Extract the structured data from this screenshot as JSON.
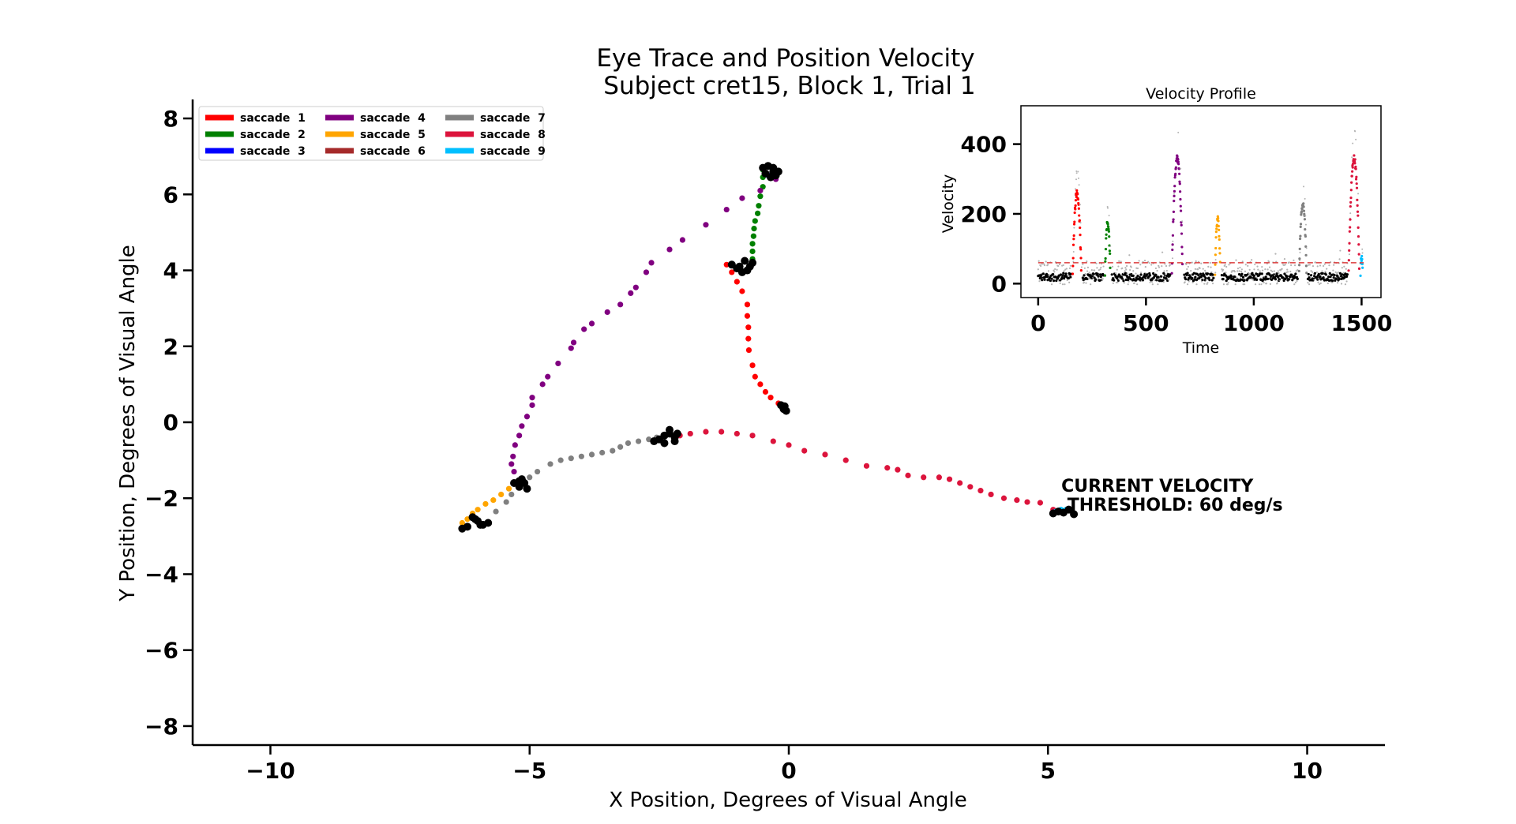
{
  "chart_data": [
    {
      "type": "scatter",
      "title": "Eye Trace and Position Velocity\n Subject cret15, Block 1, Trial 1",
      "xlabel": "X Position, Degrees of Visual Angle",
      "ylabel": "Y Position, Degrees of Visual Angle",
      "xlim": [
        -11.5,
        11.5
      ],
      "ylim": [
        -8.5,
        8.5
      ],
      "xticks": [
        -10,
        -5,
        0,
        5,
        10
      ],
      "yticks": [
        -8,
        -6,
        -4,
        -2,
        0,
        2,
        4,
        6,
        8
      ],
      "xtick_labels": [
        "−10",
        "−5",
        "0",
        "5",
        "10"
      ],
      "ytick_labels": [
        "−8",
        "−6",
        "−4",
        "−2",
        "0",
        "2",
        "4",
        "6",
        "8"
      ],
      "grid": false,
      "legend_position": "top-left",
      "annotation": "CURRENT VELOCITY\n THRESHOLD: 60 deg/s",
      "annotation_at": [
        5.5,
        -2.2
      ],
      "fixation_color": "#000000",
      "fixations": [
        [
          -0.5,
          6.7
        ],
        [
          -0.4,
          6.75
        ],
        [
          -0.3,
          6.6
        ],
        [
          -0.25,
          6.5
        ],
        [
          -0.35,
          6.45
        ],
        [
          -0.45,
          6.55
        ],
        [
          -0.2,
          6.6
        ],
        [
          -0.3,
          6.7
        ],
        [
          -1.1,
          4.15
        ],
        [
          -1.0,
          4.05
        ],
        [
          -0.9,
          3.95
        ],
        [
          -0.8,
          4.0
        ],
        [
          -0.75,
          4.1
        ],
        [
          -0.7,
          4.2
        ],
        [
          -0.85,
          4.25
        ],
        [
          -0.95,
          4.1
        ],
        [
          -0.15,
          0.45
        ],
        [
          -0.1,
          0.35
        ],
        [
          -0.05,
          0.3
        ],
        [
          -0.1,
          0.4
        ],
        [
          -0.08,
          0.42
        ],
        [
          -2.6,
          -0.5
        ],
        [
          -2.5,
          -0.45
        ],
        [
          -2.4,
          -0.55
        ],
        [
          -2.3,
          -0.3
        ],
        [
          -2.2,
          -0.4
        ],
        [
          -2.3,
          -0.2
        ],
        [
          -2.4,
          -0.35
        ],
        [
          -2.2,
          -0.5
        ],
        [
          -2.15,
          -0.3
        ],
        [
          -5.3,
          -1.6
        ],
        [
          -5.2,
          -1.7
        ],
        [
          -5.1,
          -1.6
        ],
        [
          -5.15,
          -1.5
        ],
        [
          -5.05,
          -1.75
        ],
        [
          -5.2,
          -1.55
        ],
        [
          -6.1,
          -2.5
        ],
        [
          -6.0,
          -2.6
        ],
        [
          -5.9,
          -2.7
        ],
        [
          -5.8,
          -2.65
        ],
        [
          -6.05,
          -2.55
        ],
        [
          -5.95,
          -2.7
        ],
        [
          -6.3,
          -2.8
        ],
        [
          -6.2,
          -2.75
        ],
        [
          5.1,
          -2.4
        ],
        [
          5.2,
          -2.35
        ],
        [
          5.3,
          -2.38
        ],
        [
          5.4,
          -2.3
        ],
        [
          5.5,
          -2.42
        ]
      ],
      "series": [
        {
          "name": "saccade  1",
          "color": "#ff0000",
          "points": [
            [
              -1.2,
              4.15
            ],
            [
              -1.1,
              3.95
            ],
            [
              -1.0,
              3.7
            ],
            [
              -0.9,
              3.45
            ],
            [
              -0.8,
              3.1
            ],
            [
              -0.8,
              2.8
            ],
            [
              -0.78,
              2.5
            ],
            [
              -0.78,
              2.2
            ],
            [
              -0.77,
              1.9
            ],
            [
              -0.7,
              1.5
            ],
            [
              -0.65,
              1.2
            ],
            [
              -0.55,
              1.0
            ],
            [
              -0.45,
              0.8
            ],
            [
              -0.35,
              0.65
            ],
            [
              -0.2,
              0.5
            ]
          ]
        },
        {
          "name": "saccade  2",
          "color": "#008000",
          "points": [
            [
              -0.7,
              4.3
            ],
            [
              -0.7,
              4.5
            ],
            [
              -0.7,
              4.7
            ],
            [
              -0.68,
              4.9
            ],
            [
              -0.67,
              5.1
            ],
            [
              -0.65,
              5.3
            ],
            [
              -0.6,
              5.5
            ],
            [
              -0.58,
              5.7
            ],
            [
              -0.55,
              5.95
            ],
            [
              -0.5,
              6.2
            ],
            [
              -0.5,
              6.45
            ],
            [
              -0.5,
              6.65
            ]
          ]
        },
        {
          "name": "saccade  3",
          "color": "#0000ff",
          "points": [
            [
              -0.45,
              6.55
            ],
            [
              -0.4,
              6.5
            ],
            [
              -0.35,
              6.45
            ]
          ]
        },
        {
          "name": "saccade  4",
          "color": "#800080",
          "points": [
            [
              -0.25,
              6.4
            ],
            [
              -0.55,
              6.1
            ],
            [
              -0.9,
              5.9
            ],
            [
              -1.2,
              5.6
            ],
            [
              -1.6,
              5.2
            ],
            [
              -2.05,
              4.8
            ],
            [
              -2.3,
              4.55
            ],
            [
              -2.65,
              4.2
            ],
            [
              -2.75,
              3.95
            ],
            [
              -2.95,
              3.55
            ],
            [
              -3.05,
              3.4
            ],
            [
              -3.25,
              3.1
            ],
            [
              -3.5,
              2.9
            ],
            [
              -3.8,
              2.6
            ],
            [
              -3.95,
              2.45
            ],
            [
              -4.15,
              2.1
            ],
            [
              -4.2,
              1.95
            ],
            [
              -4.45,
              1.55
            ],
            [
              -4.65,
              1.2
            ],
            [
              -4.75,
              1.0
            ],
            [
              -4.95,
              0.65
            ],
            [
              -4.95,
              0.45
            ],
            [
              -5.05,
              0.15
            ],
            [
              -5.15,
              -0.1
            ],
            [
              -5.2,
              -0.35
            ],
            [
              -5.28,
              -0.6
            ],
            [
              -5.32,
              -0.9
            ],
            [
              -5.35,
              -1.1
            ],
            [
              -5.3,
              -1.3
            ]
          ]
        },
        {
          "name": "saccade  5",
          "color": "#ffa500",
          "points": [
            [
              -5.4,
              -1.75
            ],
            [
              -5.55,
              -1.9
            ],
            [
              -5.7,
              -2.05
            ],
            [
              -5.85,
              -2.15
            ],
            [
              -6.0,
              -2.3
            ],
            [
              -6.1,
              -2.4
            ],
            [
              -6.2,
              -2.55
            ],
            [
              -6.3,
              -2.65
            ]
          ]
        },
        {
          "name": "saccade  6",
          "color": "#a52a2a",
          "points": []
        },
        {
          "name": "saccade  7",
          "color": "#808080",
          "points": [
            [
              -5.65,
              -2.35
            ],
            [
              -5.45,
              -2.1
            ],
            [
              -5.35,
              -1.9
            ],
            [
              -5.0,
              -1.45
            ],
            [
              -4.85,
              -1.3
            ],
            [
              -4.6,
              -1.1
            ],
            [
              -4.4,
              -1.0
            ],
            [
              -4.2,
              -0.95
            ],
            [
              -4.0,
              -0.9
            ],
            [
              -3.8,
              -0.85
            ],
            [
              -3.6,
              -0.8
            ],
            [
              -3.4,
              -0.75
            ],
            [
              -3.25,
              -0.65
            ],
            [
              -3.1,
              -0.55
            ],
            [
              -2.9,
              -0.5
            ],
            [
              -2.7,
              -0.45
            ],
            [
              -2.55,
              -0.4
            ]
          ]
        },
        {
          "name": "saccade  8",
          "color": "#dc143c",
          "points": [
            [
              -2.1,
              -0.35
            ],
            [
              -1.9,
              -0.3
            ],
            [
              -1.6,
              -0.25
            ],
            [
              -1.3,
              -0.25
            ],
            [
              -1.0,
              -0.3
            ],
            [
              -0.7,
              -0.35
            ],
            [
              -0.3,
              -0.5
            ],
            [
              0.0,
              -0.6
            ],
            [
              0.3,
              -0.75
            ],
            [
              0.7,
              -0.85
            ],
            [
              1.1,
              -1.0
            ],
            [
              1.5,
              -1.15
            ],
            [
              1.9,
              -1.2
            ],
            [
              2.1,
              -1.25
            ],
            [
              2.3,
              -1.4
            ],
            [
              2.6,
              -1.45
            ],
            [
              2.9,
              -1.45
            ],
            [
              3.1,
              -1.5
            ],
            [
              3.3,
              -1.6
            ],
            [
              3.5,
              -1.7
            ],
            [
              3.7,
              -1.8
            ],
            [
              3.9,
              -1.9
            ],
            [
              4.15,
              -2.0
            ],
            [
              4.4,
              -2.05
            ],
            [
              4.6,
              -2.1
            ],
            [
              4.85,
              -2.12
            ],
            [
              5.1,
              -2.3
            ]
          ]
        },
        {
          "name": "saccade  9",
          "color": "#00bfff",
          "points": [
            [
              5.15,
              -2.35
            ],
            [
              5.25,
              -2.3
            ],
            [
              5.35,
              -2.3
            ]
          ]
        }
      ]
    },
    {
      "type": "scatter",
      "title": "Velocity Profile",
      "xlabel": "Time",
      "ylabel": "Velocity",
      "xlim": [
        -80,
        1590
      ],
      "ylim": [
        -40,
        510
      ],
      "xticks": [
        0,
        500,
        1000,
        1500
      ],
      "yticks": [
        0,
        200,
        400
      ],
      "threshold": 60,
      "threshold_color": "#dc3c3c",
      "baseline_color": "#000000",
      "noise_color": "#b4b4b4",
      "saccade_peaks": [
        {
          "name": "saccade  1",
          "start": 160,
          "end": 200,
          "peak": 260,
          "color": "#ff0000"
        },
        {
          "name": "saccade  2",
          "start": 310,
          "end": 335,
          "peak": 175,
          "color": "#008000"
        },
        {
          "name": "saccade  4",
          "start": 620,
          "end": 670,
          "peak": 360,
          "color": "#800080"
        },
        {
          "name": "saccade  5",
          "start": 820,
          "end": 845,
          "peak": 185,
          "color": "#ffa500"
        },
        {
          "name": "saccade  7",
          "start": 1210,
          "end": 1245,
          "peak": 230,
          "color": "#808080"
        },
        {
          "name": "saccade  8",
          "start": 1440,
          "end": 1490,
          "peak": 360,
          "color": "#dc143c"
        },
        {
          "name": "saccade  9",
          "start": 1495,
          "end": 1505,
          "peak": 75,
          "color": "#00bfff"
        }
      ]
    }
  ]
}
